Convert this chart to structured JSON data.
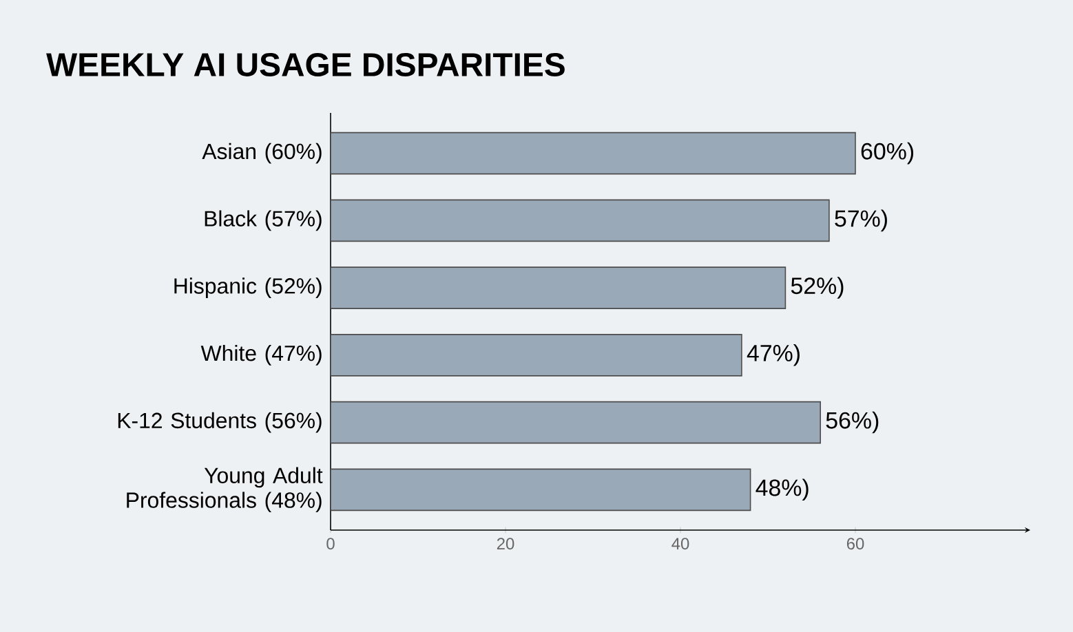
{
  "chart_data": {
    "type": "bar",
    "orientation": "horizontal",
    "title": "WEEKLY AI USAGE DISPARITIES",
    "categories": [
      "Asian (60%)",
      "Black (57%)",
      "Hispanic (52%)",
      "White (47%)",
      "K-12 Students (56%)",
      "Young Adult Professionals (48%)"
    ],
    "values": [
      60,
      57,
      52,
      47,
      56,
      48
    ],
    "value_labels": [
      "60%)",
      "57%)",
      "52%)",
      "47%)",
      "56%)",
      "48%)"
    ],
    "color": "#9aa9b8",
    "xlim": [
      0,
      80
    ],
    "xticks": [
      0,
      20,
      40,
      60
    ],
    "grid": false
  }
}
